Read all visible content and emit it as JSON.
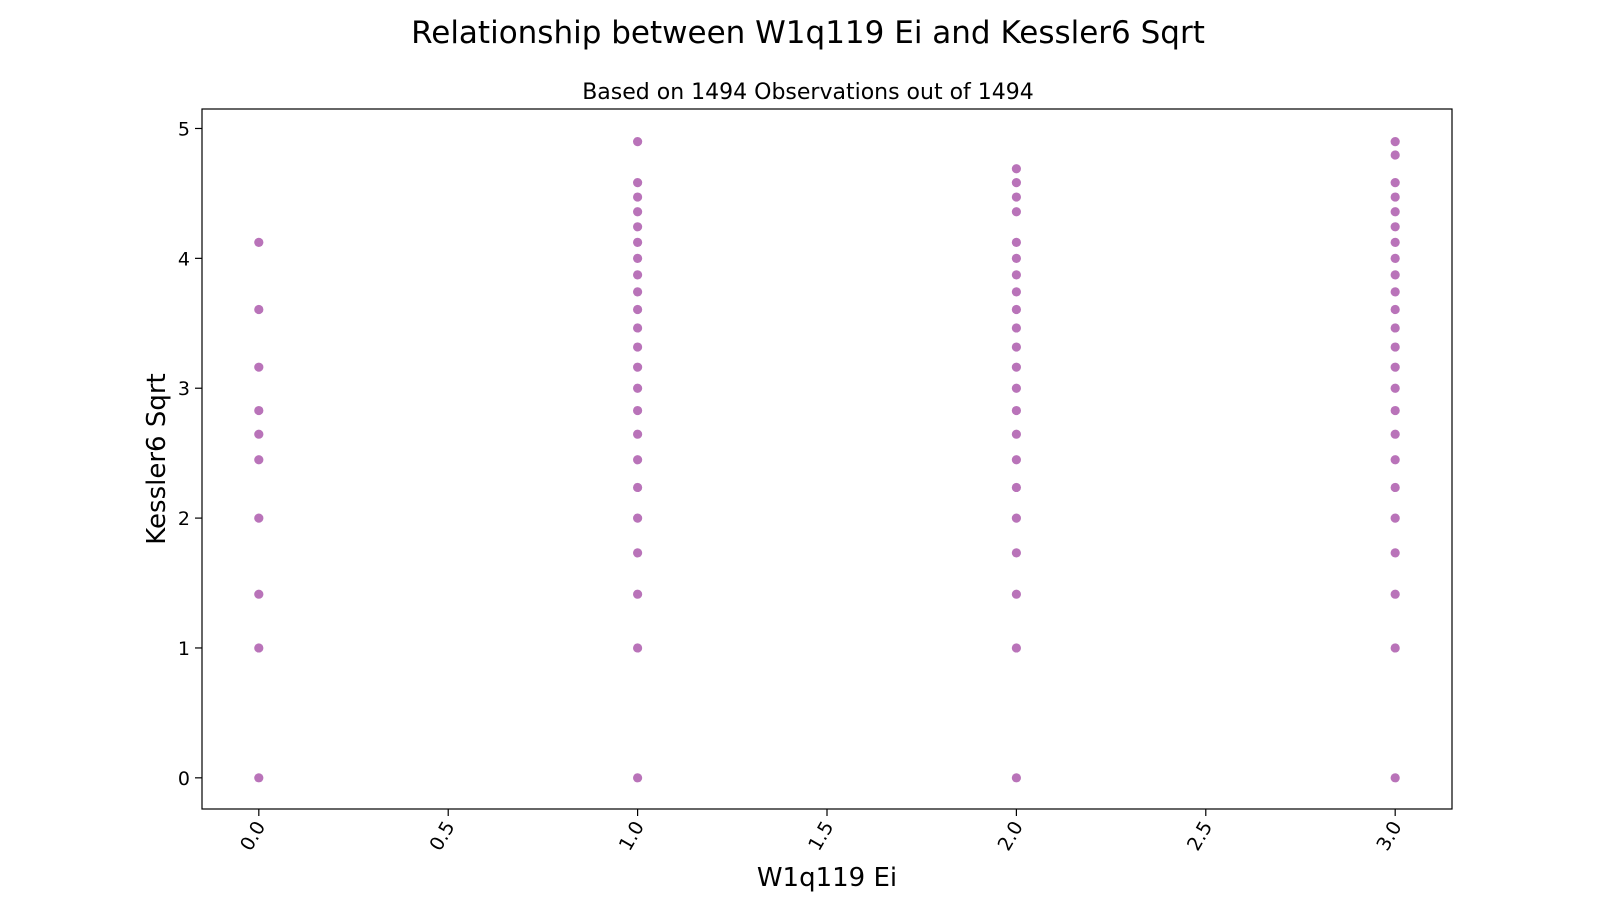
{
  "chart_data": {
    "type": "scatter",
    "title": "Relationship between W1q119 Ei and Kessler6 Sqrt",
    "subtitle": "Based on 1494 Observations out of 1494",
    "xlabel": "W1q119 Ei",
    "ylabel": "Kessler6 Sqrt",
    "xlim": [
      -0.15,
      3.15
    ],
    "ylim": [
      -0.24,
      5.15
    ],
    "x_ticks": [
      "0.0",
      "0.5",
      "1.0",
      "1.5",
      "2.0",
      "2.5",
      "3.0"
    ],
    "y_ticks": [
      "0",
      "1",
      "2",
      "3",
      "4",
      "5"
    ],
    "grid": false,
    "point_color": "#800080",
    "point_alpha": 0.55,
    "series": [
      {
        "x": 0,
        "values": [
          0,
          1,
          1.414,
          2,
          2.449,
          2.646,
          2.828,
          3.162,
          3.606,
          4.123
        ]
      },
      {
        "x": 1,
        "values": [
          0,
          1,
          1.414,
          1.732,
          2,
          2.236,
          2.449,
          2.646,
          2.828,
          3,
          3.162,
          3.317,
          3.464,
          3.606,
          3.742,
          3.873,
          4,
          4.123,
          4.243,
          4.359,
          4.472,
          4.583,
          4.899
        ]
      },
      {
        "x": 2,
        "values": [
          0,
          1,
          1.414,
          1.732,
          2,
          2.236,
          2.449,
          2.646,
          2.828,
          3,
          3.162,
          3.317,
          3.464,
          3.606,
          3.742,
          3.873,
          4,
          4.123,
          4.359,
          4.472,
          4.583,
          4.69
        ]
      },
      {
        "x": 3,
        "values": [
          0,
          1,
          1.414,
          1.732,
          2,
          2.236,
          2.449,
          2.646,
          2.828,
          3,
          3.162,
          3.317,
          3.464,
          3.606,
          3.742,
          3.873,
          4,
          4.123,
          4.243,
          4.359,
          4.472,
          4.583,
          4.796,
          4.899
        ]
      }
    ]
  }
}
